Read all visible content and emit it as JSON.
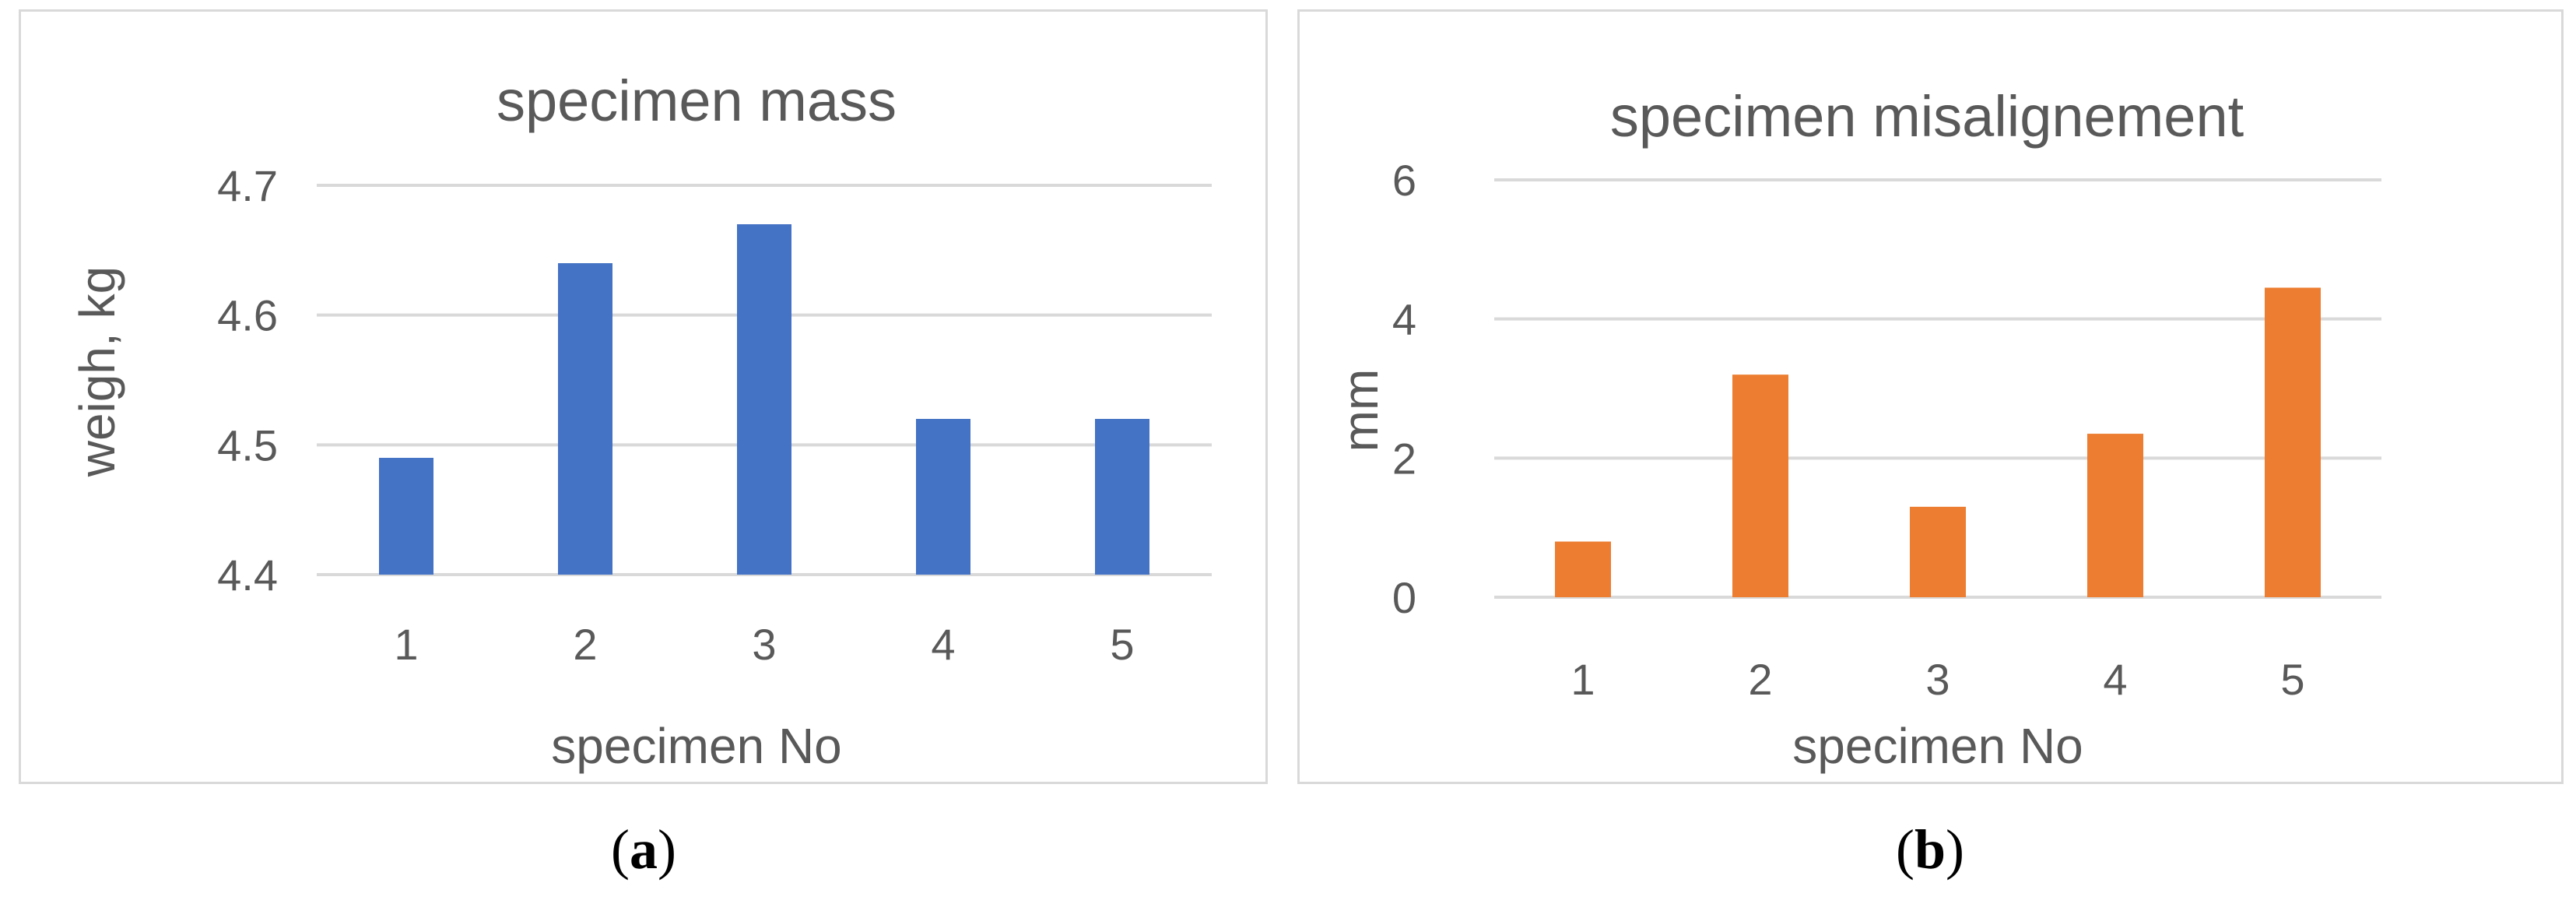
{
  "chart_data": [
    {
      "type": "bar",
      "title": "specimen mass",
      "xlabel": "specimen No",
      "ylabel": "weigh, kg",
      "categories": [
        "1",
        "2",
        "3",
        "4",
        "5"
      ],
      "values": [
        4.49,
        4.64,
        4.67,
        4.52,
        4.52
      ],
      "ylim": [
        4.4,
        4.7
      ],
      "yticks": [
        "4.4",
        "4.5",
        "4.6",
        "4.7"
      ],
      "color": "#4472c4",
      "grid": true,
      "caption_letter": "a"
    },
    {
      "type": "bar",
      "title": "specimen misalignement",
      "xlabel": "specimen No",
      "ylabel": "mm",
      "categories": [
        "1",
        "2",
        "3",
        "4",
        "5"
      ],
      "values": [
        0.8,
        3.2,
        1.3,
        2.35,
        4.45
      ],
      "ylim": [
        0,
        6
      ],
      "yticks": [
        "0",
        "2",
        "4",
        "6"
      ],
      "color": "#ed7d31",
      "grid": true,
      "caption_letter": "b"
    }
  ]
}
